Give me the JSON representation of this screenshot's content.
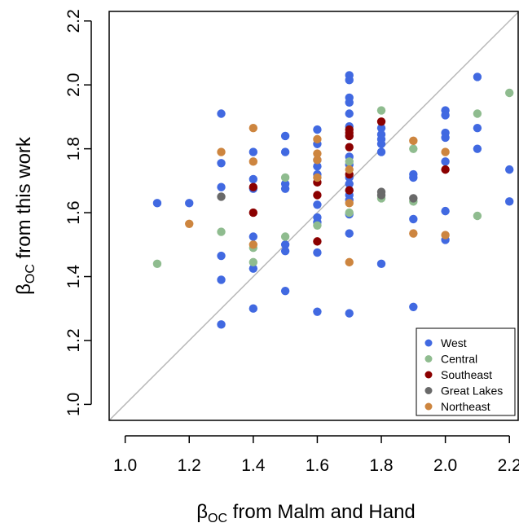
{
  "chart_data": {
    "type": "scatter",
    "xlabel": "β_OC from Malm and Hand",
    "ylabel": "β_OC from this work",
    "xlabel_main": "β",
    "xlabel_sub": "OC",
    "xlabel_rest": " from Malm and Hand",
    "ylabel_main": "β",
    "ylabel_sub": "OC",
    "ylabel_rest": " from this work",
    "xlim": [
      0.95,
      2.23
    ],
    "ylim": [
      0.95,
      2.23
    ],
    "x_ticks": [
      "1.0",
      "1.2",
      "1.4",
      "1.6",
      "1.8",
      "2.0",
      "2.2"
    ],
    "y_ticks": [
      "1.0",
      "1.2",
      "1.4",
      "1.6",
      "1.8",
      "2.0",
      "2.2"
    ],
    "reference_line": "y = x",
    "legend_position": "bottom-right",
    "series": [
      {
        "name": "West",
        "color": "#4169E1",
        "points": [
          [
            1.1,
            1.63
          ],
          [
            1.2,
            1.63
          ],
          [
            1.3,
            1.91
          ],
          [
            1.3,
            1.755
          ],
          [
            1.3,
            1.68
          ],
          [
            1.3,
            1.465
          ],
          [
            1.3,
            1.39
          ],
          [
            1.3,
            1.25
          ],
          [
            1.4,
            1.79
          ],
          [
            1.4,
            1.705
          ],
          [
            1.4,
            1.675
          ],
          [
            1.4,
            1.525
          ],
          [
            1.4,
            1.425
          ],
          [
            1.4,
            1.3
          ],
          [
            1.5,
            1.84
          ],
          [
            1.5,
            1.79
          ],
          [
            1.5,
            1.69
          ],
          [
            1.5,
            1.675
          ],
          [
            1.5,
            1.5
          ],
          [
            1.5,
            1.48
          ],
          [
            1.5,
            1.355
          ],
          [
            1.6,
            1.86
          ],
          [
            1.6,
            1.815
          ],
          [
            1.6,
            1.765
          ],
          [
            1.6,
            1.745
          ],
          [
            1.6,
            1.72
          ],
          [
            1.6,
            1.625
          ],
          [
            1.6,
            1.585
          ],
          [
            1.6,
            1.57
          ],
          [
            1.6,
            1.475
          ],
          [
            1.6,
            1.29
          ],
          [
            1.7,
            2.03
          ],
          [
            1.7,
            2.015
          ],
          [
            1.7,
            1.96
          ],
          [
            1.7,
            1.945
          ],
          [
            1.7,
            1.91
          ],
          [
            1.7,
            1.87
          ],
          [
            1.7,
            1.84
          ],
          [
            1.7,
            1.775
          ],
          [
            1.7,
            1.75
          ],
          [
            1.7,
            1.71
          ],
          [
            1.7,
            1.69
          ],
          [
            1.7,
            1.67
          ],
          [
            1.7,
            1.655
          ],
          [
            1.7,
            1.64
          ],
          [
            1.7,
            1.595
          ],
          [
            1.7,
            1.535
          ],
          [
            1.7,
            1.285
          ],
          [
            1.8,
            1.865
          ],
          [
            1.8,
            1.845
          ],
          [
            1.8,
            1.83
          ],
          [
            1.8,
            1.815
          ],
          [
            1.8,
            1.79
          ],
          [
            1.8,
            1.44
          ],
          [
            1.9,
            1.72
          ],
          [
            1.9,
            1.71
          ],
          [
            1.9,
            1.58
          ],
          [
            1.9,
            1.305
          ],
          [
            2.0,
            1.92
          ],
          [
            2.0,
            1.905
          ],
          [
            2.0,
            1.85
          ],
          [
            2.0,
            1.835
          ],
          [
            2.0,
            1.76
          ],
          [
            2.0,
            1.605
          ],
          [
            2.0,
            1.515
          ],
          [
            2.1,
            2.025
          ],
          [
            2.1,
            1.865
          ],
          [
            2.1,
            1.8
          ],
          [
            2.2,
            1.735
          ],
          [
            2.2,
            1.635
          ]
        ]
      },
      {
        "name": "Central",
        "color": "#8FBC8F",
        "points": [
          [
            1.1,
            1.44
          ],
          [
            1.3,
            1.54
          ],
          [
            1.4,
            1.49
          ],
          [
            1.4,
            1.445
          ],
          [
            1.5,
            1.71
          ],
          [
            1.5,
            1.525
          ],
          [
            1.6,
            1.56
          ],
          [
            1.7,
            1.76
          ],
          [
            1.7,
            1.6
          ],
          [
            1.8,
            1.92
          ],
          [
            1.8,
            1.645
          ],
          [
            1.9,
            1.8
          ],
          [
            1.9,
            1.635
          ],
          [
            2.1,
            1.91
          ],
          [
            2.1,
            1.59
          ],
          [
            2.2,
            1.975
          ]
        ]
      },
      {
        "name": "Southeast",
        "color": "#8B0000",
        "points": [
          [
            1.4,
            1.6
          ],
          [
            1.4,
            1.68
          ],
          [
            1.6,
            1.695
          ],
          [
            1.6,
            1.655
          ],
          [
            1.6,
            1.51
          ],
          [
            1.7,
            1.86
          ],
          [
            1.7,
            1.85
          ],
          [
            1.7,
            1.84
          ],
          [
            1.7,
            1.805
          ],
          [
            1.7,
            1.72
          ],
          [
            1.7,
            1.67
          ],
          [
            1.8,
            1.885
          ],
          [
            2.0,
            1.735
          ]
        ]
      },
      {
        "name": "Great Lakes",
        "color": "#696969",
        "points": [
          [
            1.3,
            1.65
          ],
          [
            1.8,
            1.665
          ],
          [
            1.8,
            1.655
          ],
          [
            1.9,
            1.645
          ]
        ]
      },
      {
        "name": "Northeast",
        "color": "#CD853F",
        "points": [
          [
            1.2,
            1.565
          ],
          [
            1.3,
            1.79
          ],
          [
            1.4,
            1.865
          ],
          [
            1.4,
            1.76
          ],
          [
            1.4,
            1.5
          ],
          [
            1.6,
            1.83
          ],
          [
            1.6,
            1.785
          ],
          [
            1.6,
            1.765
          ],
          [
            1.6,
            1.71
          ],
          [
            1.7,
            1.735
          ],
          [
            1.7,
            1.63
          ],
          [
            1.7,
            1.445
          ],
          [
            1.9,
            1.825
          ],
          [
            1.9,
            1.535
          ],
          [
            2.0,
            1.79
          ],
          [
            2.0,
            1.53
          ]
        ]
      }
    ]
  }
}
